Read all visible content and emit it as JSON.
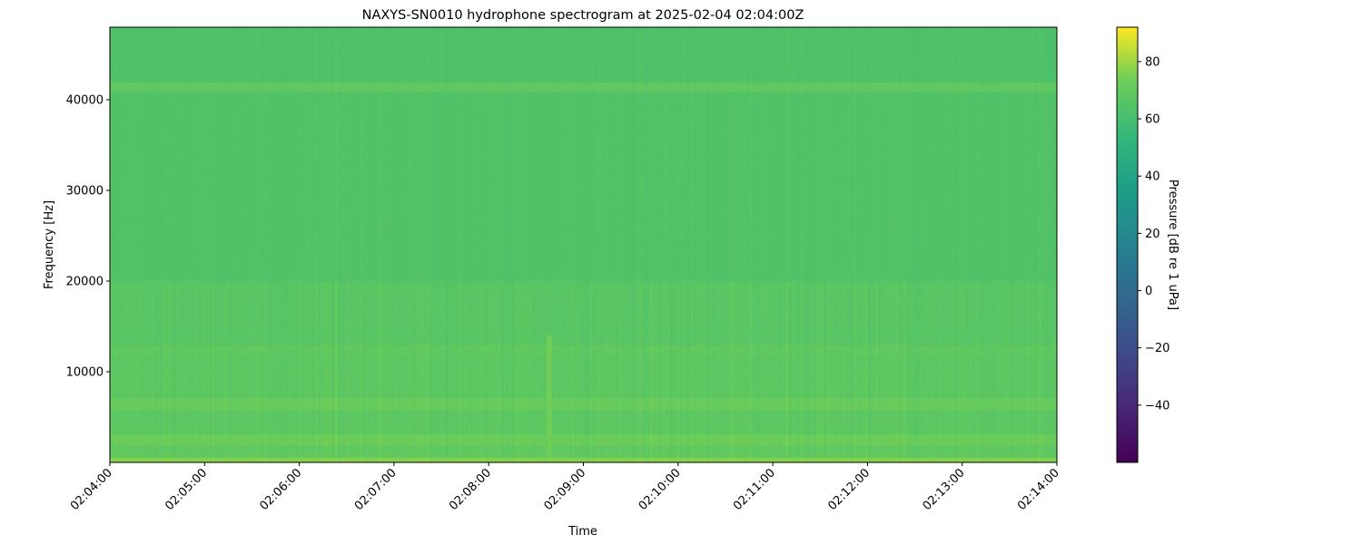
{
  "chart_data": {
    "type": "heatmap",
    "title": "NAXYS-SN0010 hydrophone spectrogram at 2025-02-04 02:04:00Z",
    "xlabel": "Time",
    "ylabel": "Frequency [Hz]",
    "colorbar_label": "Pressure [dB re 1 uPa]",
    "colormap": "viridis",
    "xlim": [
      "02:04:00",
      "02:14:00"
    ],
    "ylim": [
      0,
      48000
    ],
    "clim": [
      -60,
      92
    ],
    "x_ticks": [
      "02:04:00",
      "02:05:00",
      "02:06:00",
      "02:07:00",
      "02:08:00",
      "02:09:00",
      "02:10:00",
      "02:11:00",
      "02:12:00",
      "02:13:00",
      "02:14:00"
    ],
    "y_ticks": [
      10000,
      20000,
      30000,
      40000
    ],
    "y_tick_labels": [
      "10000",
      "20000",
      "30000",
      "40000"
    ],
    "colorbar_ticks": [
      -40,
      -20,
      0,
      20,
      40,
      60,
      80
    ],
    "colorbar_tick_labels": [
      "−40",
      "−20",
      "0",
      "20",
      "40",
      "60",
      "80"
    ],
    "grid": false,
    "frequency_profile_db": [
      {
        "f_low": 0,
        "f_high": 600,
        "db": 63
      },
      {
        "f_low": 600,
        "f_high": 2000,
        "db": 54
      },
      {
        "f_low": 2000,
        "f_high": 3200,
        "db": 57
      },
      {
        "f_low": 3200,
        "f_high": 5800,
        "db": 53
      },
      {
        "f_low": 5800,
        "f_high": 7200,
        "db": 56
      },
      {
        "f_low": 7200,
        "f_high": 12000,
        "db": 53
      },
      {
        "f_low": 12000,
        "f_high": 13000,
        "db": 54
      },
      {
        "f_low": 13000,
        "f_high": 20000,
        "db": 52
      },
      {
        "f_low": 20000,
        "f_high": 41000,
        "db": 50
      },
      {
        "f_low": 41000,
        "f_high": 42000,
        "db": 54
      },
      {
        "f_low": 42000,
        "f_high": 48000,
        "db": 49
      }
    ],
    "events": [
      {
        "time": "02:08:38",
        "f_low": 0,
        "f_high": 14000,
        "db": 60
      }
    ]
  }
}
